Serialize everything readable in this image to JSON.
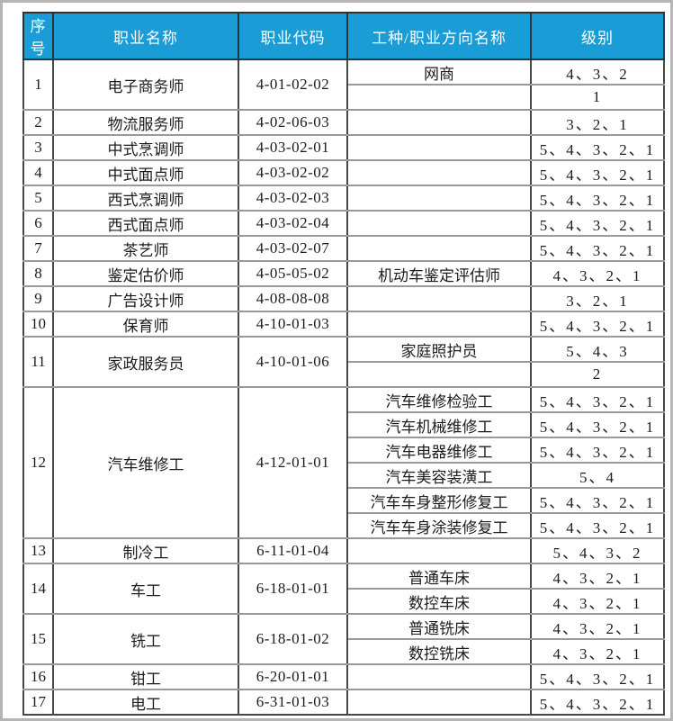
{
  "theme": {
    "header_bg": "#1a9cd6",
    "header_text": "#ffffff",
    "grid_vertical": "#474747",
    "grid_horizontal": "#9a9a9a",
    "body_text": "#1c1c1c",
    "frame_border": "#b5b5b5"
  },
  "table": {
    "headers": [
      "序号",
      "职业名称",
      "职业代码",
      "工种/职业方向名称",
      "级别"
    ],
    "rows": [
      {
        "no": "1",
        "name": "电子商务师",
        "code": "4-01-02-02",
        "subs": [
          {
            "direction": "网商",
            "level": "4、3、2"
          },
          {
            "direction": "",
            "level": "1"
          }
        ]
      },
      {
        "no": "2",
        "name": "物流服务师",
        "code": "4-02-06-03",
        "subs": [
          {
            "direction": "",
            "level": "3、2、1"
          }
        ]
      },
      {
        "no": "3",
        "name": "中式烹调师",
        "code": "4-03-02-01",
        "subs": [
          {
            "direction": "",
            "level": "5、4、3、2、1"
          }
        ]
      },
      {
        "no": "4",
        "name": "中式面点师",
        "code": "4-03-02-02",
        "subs": [
          {
            "direction": "",
            "level": "5、4、3、2、1"
          }
        ]
      },
      {
        "no": "5",
        "name": "西式烹调师",
        "code": "4-03-02-03",
        "subs": [
          {
            "direction": "",
            "level": "5、4、3、2、1"
          }
        ]
      },
      {
        "no": "6",
        "name": "西式面点师",
        "code": "4-03-02-04",
        "subs": [
          {
            "direction": "",
            "level": "5、4、3、2、1"
          }
        ]
      },
      {
        "no": "7",
        "name": "茶艺师",
        "code": "4-03-02-07",
        "subs": [
          {
            "direction": "",
            "level": "5、4、3、2、1"
          }
        ]
      },
      {
        "no": "8",
        "name": "鉴定估价师",
        "code": "4-05-05-02",
        "subs": [
          {
            "direction": "机动车鉴定评估师",
            "level": "4、3、2、1"
          }
        ]
      },
      {
        "no": "9",
        "name": "广告设计师",
        "code": "4-08-08-08",
        "subs": [
          {
            "direction": "",
            "level": "3、2、1"
          }
        ]
      },
      {
        "no": "10",
        "name": "保育师",
        "code": "4-10-01-03",
        "subs": [
          {
            "direction": "",
            "level": "5、4、3、2、1"
          }
        ]
      },
      {
        "no": "11",
        "name": "家政服务员",
        "code": "4-10-01-06",
        "subs": [
          {
            "direction": "家庭照护员",
            "level": "5、4、3"
          },
          {
            "direction": "",
            "level": "2"
          }
        ]
      },
      {
        "no": "12",
        "name": "汽车维修工",
        "code": "4-12-01-01",
        "subs": [
          {
            "direction": "汽车维修检验工",
            "level": "5、4、3、2、1"
          },
          {
            "direction": "汽车机械维修工",
            "level": "5、4、3、2、1"
          },
          {
            "direction": "汽车电器维修工",
            "level": "5、4、3、2、1"
          },
          {
            "direction": "汽车美容装潢工",
            "level": "5、4"
          },
          {
            "direction": "汽车车身整形修复工",
            "level": "5、4、3、2、1"
          },
          {
            "direction": "汽车车身涂装修复工",
            "level": "5、4、3、2、1"
          }
        ]
      },
      {
        "no": "13",
        "name": "制冷工",
        "code": "6-11-01-04",
        "subs": [
          {
            "direction": "",
            "level": "5、4、3、2"
          }
        ]
      },
      {
        "no": "14",
        "name": "车工",
        "code": "6-18-01-01",
        "subs": [
          {
            "direction": "普通车床",
            "level": "4、3、2、1"
          },
          {
            "direction": "数控车床",
            "level": "4、3、2、1"
          }
        ]
      },
      {
        "no": "15",
        "name": "铣工",
        "code": "6-18-01-02",
        "subs": [
          {
            "direction": "普通铣床",
            "level": "4、3、2、1"
          },
          {
            "direction": "数控铣床",
            "level": "4、3、2、1"
          }
        ]
      },
      {
        "no": "16",
        "name": "钳工",
        "code": "6-20-01-01",
        "subs": [
          {
            "direction": "",
            "level": "5、4、3、2、1"
          }
        ]
      },
      {
        "no": "17",
        "name": "电工",
        "code": "6-31-01-03",
        "subs": [
          {
            "direction": "",
            "level": "5、4、3、2、1"
          }
        ]
      }
    ]
  }
}
